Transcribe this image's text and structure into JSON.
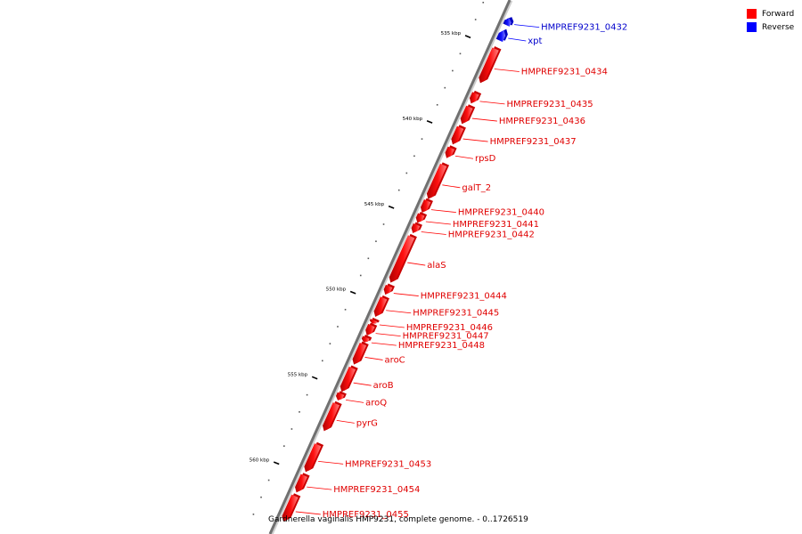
{
  "legend": {
    "forward_label": "Forward",
    "reverse_label": "Reverse",
    "forward_color": "#ff0000",
    "reverse_color": "#0000ff"
  },
  "caption": "Gardnerella vaginalis HMP9231, complete genome. - 0..1726519",
  "axis": {
    "major_ticks": [
      {
        "label": "535 kbp",
        "kbp": 535
      },
      {
        "label": "540 kbp",
        "kbp": 540
      },
      {
        "label": "545 kbp",
        "kbp": 545
      },
      {
        "label": "550 kbp",
        "kbp": 550
      },
      {
        "label": "555 kbp",
        "kbp": 555
      },
      {
        "label": "560 kbp",
        "kbp": 560
      }
    ]
  },
  "genes": [
    {
      "name": "HMPREF9231_0432",
      "strand": "reverse",
      "start_kbp": 533.2,
      "end_kbp": 533.6
    },
    {
      "name": "xpt",
      "strand": "reverse",
      "start_kbp": 533.9,
      "end_kbp": 534.5
    },
    {
      "name": "HMPREF9231_0434",
      "strand": "forward",
      "start_kbp": 535.0,
      "end_kbp": 537.0
    },
    {
      "name": "HMPREF9231_0435",
      "strand": "forward",
      "start_kbp": 537.6,
      "end_kbp": 538.2
    },
    {
      "name": "HMPREF9231_0436",
      "strand": "forward",
      "start_kbp": 538.4,
      "end_kbp": 539.4
    },
    {
      "name": "HMPREF9231_0437",
      "strand": "forward",
      "start_kbp": 539.6,
      "end_kbp": 540.6
    },
    {
      "name": "rpsD",
      "strand": "forward",
      "start_kbp": 540.8,
      "end_kbp": 541.4
    },
    {
      "name": "galT_2",
      "strand": "forward",
      "start_kbp": 541.8,
      "end_kbp": 543.8
    },
    {
      "name": "HMPREF9231_0440",
      "strand": "forward",
      "start_kbp": 543.9,
      "end_kbp": 544.6
    },
    {
      "name": "HMPREF9231_0441",
      "strand": "forward",
      "start_kbp": 544.7,
      "end_kbp": 545.2
    },
    {
      "name": "HMPREF9231_0442",
      "strand": "forward",
      "start_kbp": 545.3,
      "end_kbp": 545.8
    },
    {
      "name": "alaS",
      "strand": "forward",
      "start_kbp": 546.0,
      "end_kbp": 548.7
    },
    {
      "name": "HMPREF9231_0444",
      "strand": "forward",
      "start_kbp": 548.9,
      "end_kbp": 549.4
    },
    {
      "name": "HMPREF9231_0445",
      "strand": "forward",
      "start_kbp": 549.6,
      "end_kbp": 550.7
    },
    {
      "name": "HMPREF9231_0446",
      "strand": "forward",
      "start_kbp": 550.9,
      "end_kbp": 551.1
    },
    {
      "name": "HMPREF9231_0447",
      "strand": "forward",
      "start_kbp": 551.2,
      "end_kbp": 551.8
    },
    {
      "name": "HMPREF9231_0448",
      "strand": "forward",
      "start_kbp": 551.9,
      "end_kbp": 552.2
    },
    {
      "name": "aroC",
      "strand": "forward",
      "start_kbp": 552.3,
      "end_kbp": 553.5
    },
    {
      "name": "aroB",
      "strand": "forward",
      "start_kbp": 553.7,
      "end_kbp": 555.1
    },
    {
      "name": "aroQ",
      "strand": "forward",
      "start_kbp": 555.2,
      "end_kbp": 555.6
    },
    {
      "name": "pyrG",
      "strand": "forward",
      "start_kbp": 555.8,
      "end_kbp": 557.4
    },
    {
      "name": "HMPREF9231_0453",
      "strand": "forward",
      "start_kbp": 558.2,
      "end_kbp": 559.8
    },
    {
      "name": "HMPREF9231_0454",
      "strand": "forward",
      "start_kbp": 560.0,
      "end_kbp": 561.0
    },
    {
      "name": "HMPREF9231_0455",
      "strand": "forward",
      "start_kbp": 561.2,
      "end_kbp": 562.7
    }
  ]
}
